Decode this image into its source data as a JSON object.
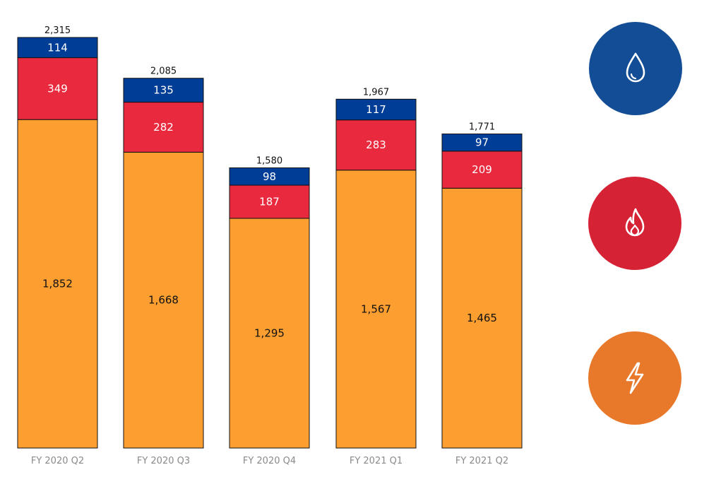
{
  "chart_data": {
    "type": "bar",
    "stacked": true,
    "categories": [
      "FY 2020 Q2",
      "FY 2020 Q3",
      "FY 2020 Q4",
      "FY 2021 Q1",
      "FY 2021 Q2"
    ],
    "series": [
      {
        "key": "electricity",
        "color": "#fd9e31",
        "label_color": "#111111",
        "values": [
          1852,
          1668,
          1295,
          1567,
          1465
        ],
        "value_labels": [
          "1,852",
          "1,668",
          "1,295",
          "1,567",
          "1,465"
        ]
      },
      {
        "key": "gas",
        "color": "#e92a3e",
        "label_color": "#ffffff",
        "values": [
          349,
          282,
          187,
          283,
          209
        ],
        "value_labels": [
          "349",
          "282",
          "187",
          "283",
          "209"
        ]
      },
      {
        "key": "water",
        "color": "#003d97",
        "label_color": "#ffffff",
        "values": [
          114,
          135,
          98,
          117,
          97
        ],
        "value_labels": [
          "114",
          "135",
          "98",
          "117",
          "97"
        ]
      }
    ],
    "totals": [
      2315,
      2085,
      1580,
      1967,
      1771
    ],
    "total_labels": [
      "2,315",
      "2,085",
      "1,580",
      "1,967",
      "1,771"
    ],
    "ylim": [
      0,
      2315
    ],
    "grid": false,
    "legend_placement": "right"
  },
  "legend": {
    "items": [
      {
        "icon": "water-drop-icon",
        "color": "#134d95"
      },
      {
        "icon": "flame-icon",
        "color": "#d52235"
      },
      {
        "icon": "lightning-bolt-icon",
        "color": "#e8792b"
      }
    ]
  }
}
